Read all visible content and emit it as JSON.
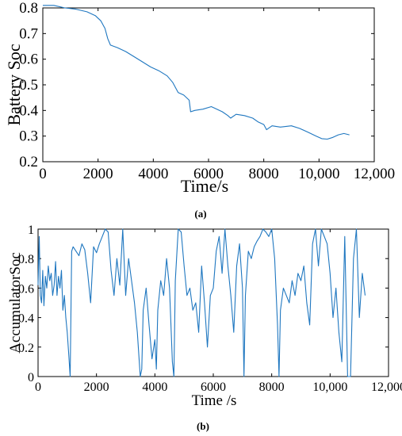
{
  "series_color": "#1f77c0",
  "chart_data": [
    {
      "type": "line",
      "panel_label": "(a)",
      "xlabel": "Time/s",
      "ylabel": "Battery Soc",
      "xlim": [
        0,
        12000
      ],
      "ylim": [
        0.2,
        0.8
      ],
      "x_ticks": [
        0,
        2000,
        4000,
        6000,
        8000,
        10000,
        12000
      ],
      "x_tick_labels": [
        "0",
        "2000",
        "4000",
        "6000",
        "8000",
        "10,000",
        "12,000"
      ],
      "y_ticks": [
        0.2,
        0.3,
        0.4,
        0.5,
        0.6,
        0.7,
        0.8
      ],
      "y_tick_labels": [
        "0.2",
        "0.3",
        "0.4",
        "0.5",
        "0.6",
        "0.7",
        "0.8"
      ],
      "series": [
        {
          "x": [
            0,
            400,
            800,
            1200,
            1600,
            1900,
            2100,
            2250,
            2350,
            2450,
            2700,
            3000,
            3300,
            3600,
            3900,
            4200,
            4500,
            4700,
            4900,
            5100,
            5300,
            5350,
            5500,
            5800,
            6100,
            6300,
            6500,
            6700,
            6800,
            7000,
            7300,
            7600,
            7800,
            8000,
            8100,
            8300,
            8600,
            9000,
            9300,
            9600,
            9900,
            10100,
            10300,
            10500,
            10700,
            10900,
            11100
          ],
          "y": [
            0.81,
            0.81,
            0.8,
            0.795,
            0.785,
            0.77,
            0.75,
            0.72,
            0.68,
            0.655,
            0.645,
            0.63,
            0.61,
            0.59,
            0.57,
            0.555,
            0.535,
            0.51,
            0.47,
            0.46,
            0.44,
            0.395,
            0.4,
            0.405,
            0.415,
            0.405,
            0.395,
            0.38,
            0.37,
            0.385,
            0.38,
            0.37,
            0.355,
            0.345,
            0.325,
            0.34,
            0.335,
            0.34,
            0.33,
            0.315,
            0.3,
            0.29,
            0.288,
            0.295,
            0.305,
            0.31,
            0.305
          ]
        }
      ]
    },
    {
      "type": "line",
      "panel_label": "(b)",
      "xlabel": "Time /s",
      "ylabel": "AccumulatorSoc",
      "xlim": [
        0,
        12000
      ],
      "ylim": [
        0,
        1
      ],
      "x_ticks": [
        0,
        2000,
        4000,
        6000,
        8000,
        10000,
        12000
      ],
      "x_tick_labels": [
        "0",
        "2000",
        "4000",
        "6000",
        "8000",
        "10,000",
        "12,000"
      ],
      "y_ticks": [
        0,
        0.2,
        0.4,
        0.6,
        0.8,
        1
      ],
      "y_tick_labels": [
        "0",
        "0.2",
        "0.4",
        "0.6",
        "0.8",
        "1"
      ],
      "series": [
        {
          "x": [
            0,
            40,
            80,
            120,
            160,
            200,
            250,
            300,
            350,
            400,
            450,
            500,
            550,
            600,
            650,
            700,
            750,
            800,
            850,
            900,
            950,
            1000,
            1050,
            1100,
            1150,
            1200,
            1300,
            1400,
            1500,
            1600,
            1700,
            1800,
            1900,
            2000,
            2100,
            2200,
            2300,
            2400,
            2500,
            2600,
            2700,
            2800,
            2900,
            3000,
            3100,
            3200,
            3300,
            3400,
            3500,
            3550,
            3600,
            3700,
            3800,
            3900,
            4000,
            4050,
            4100,
            4200,
            4300,
            4400,
            4500,
            4600,
            4650,
            4700,
            4800,
            4900,
            5000,
            5100,
            5200,
            5300,
            5400,
            5500,
            5600,
            5700,
            5800,
            5900,
            6000,
            6100,
            6200,
            6300,
            6400,
            6500,
            6600,
            6700,
            6800,
            6900,
            7000,
            7050,
            7100,
            7200,
            7300,
            7400,
            7500,
            7600,
            7700,
            7800,
            7900,
            8000,
            8100,
            8200,
            8250,
            8300,
            8400,
            8500,
            8600,
            8700,
            8800,
            8900,
            9000,
            9100,
            9200,
            9300,
            9400,
            9500,
            9600,
            9700,
            9800,
            9900,
            10000,
            10100,
            10200,
            10300,
            10400,
            10500,
            10600,
            10700,
            10800,
            10900,
            11000,
            11100,
            11200
          ],
          "y": [
            0.62,
            0.95,
            0.55,
            0.5,
            0.72,
            0.48,
            0.68,
            0.6,
            0.75,
            0.65,
            0.7,
            0.55,
            0.62,
            0.78,
            0.55,
            0.68,
            0.6,
            0.72,
            0.45,
            0.55,
            0.4,
            0.3,
            0.15,
            0.0,
            0.85,
            0.88,
            0.85,
            0.82,
            0.9,
            0.86,
            0.7,
            0.5,
            0.88,
            0.84,
            0.9,
            0.95,
            1.0,
            0.98,
            0.72,
            0.55,
            0.8,
            0.62,
            1.0,
            0.55,
            0.8,
            0.65,
            0.5,
            0.3,
            0.0,
            0.05,
            0.45,
            0.6,
            0.35,
            0.12,
            0.25,
            0.05,
            0.45,
            0.65,
            0.55,
            0.8,
            0.6,
            0.1,
            0.0,
            0.65,
            1.0,
            0.98,
            0.75,
            0.55,
            0.6,
            0.45,
            0.5,
            0.3,
            0.75,
            0.5,
            0.2,
            0.55,
            0.6,
            0.85,
            0.95,
            0.7,
            1.0,
            0.75,
            0.55,
            0.3,
            0.75,
            0.9,
            0.6,
            0.0,
            0.55,
            0.85,
            0.8,
            0.88,
            0.92,
            0.95,
            1.0,
            0.98,
            0.95,
            1.0,
            0.8,
            0.35,
            0.0,
            0.45,
            0.6,
            0.55,
            0.5,
            0.65,
            0.55,
            0.7,
            0.65,
            0.75,
            0.5,
            0.35,
            0.9,
            1.0,
            0.75,
            1.0,
            0.95,
            0.9,
            0.7,
            0.4,
            0.6,
            0.3,
            0.1,
            0.95,
            0.0,
            0.0,
            0.8,
            1.0,
            0.4,
            0.7,
            0.55
          ]
        }
      ]
    }
  ]
}
